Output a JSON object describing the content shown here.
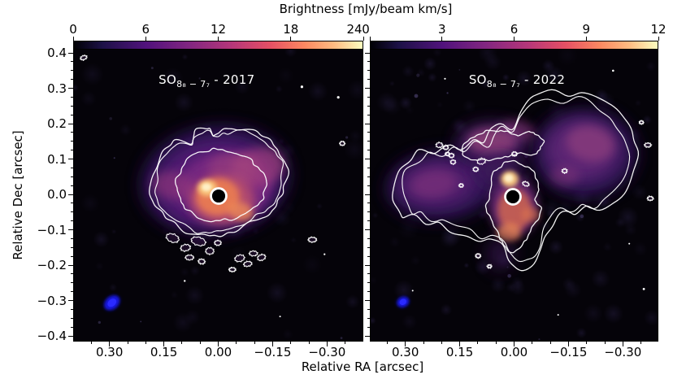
{
  "figure": {
    "colorbar_title": "Brightness [mJy/beam km/s]",
    "xlabel": "Relative RA [arcsec]",
    "ylabel": "Relative Dec [arcsec]",
    "y_ticks": [
      {
        "v": 0.4,
        "label": "0.4"
      },
      {
        "v": 0.3,
        "label": "0.3"
      },
      {
        "v": 0.2,
        "label": "0.2"
      },
      {
        "v": 0.1,
        "label": "0.1"
      },
      {
        "v": 0.0,
        "label": "0.0"
      },
      {
        "v": -0.1,
        "label": "−0.1"
      },
      {
        "v": -0.2,
        "label": "−0.2"
      },
      {
        "v": -0.3,
        "label": "−0.3"
      },
      {
        "v": -0.4,
        "label": "−0.4"
      }
    ],
    "panels": [
      {
        "title_mol": "SO",
        "title_transition": "8₈ − 7₇",
        "title_year": " - 2017",
        "colorbar_ticks": [
          {
            "v": 0,
            "label": "0"
          },
          {
            "v": 6,
            "label": "6"
          },
          {
            "v": 12,
            "label": "12"
          },
          {
            "v": 18,
            "label": "18"
          },
          {
            "v": 24,
            "label": "24"
          }
        ],
        "x_ticks": [
          {
            "v": 0.3,
            "label": "0.30"
          },
          {
            "v": 0.15,
            "label": "0.15"
          },
          {
            "v": 0.0,
            "label": "0.00"
          },
          {
            "v": -0.15,
            "label": "−0.15"
          },
          {
            "v": -0.3,
            "label": "−0.30"
          }
        ]
      },
      {
        "title_mol": "SO",
        "title_transition": "8₈ − 7₇",
        "title_year": " - 2022",
        "colorbar_ticks": [
          {
            "v": 0,
            "label": "0"
          },
          {
            "v": 3,
            "label": "3"
          },
          {
            "v": 6,
            "label": "6"
          },
          {
            "v": 9,
            "label": "9"
          },
          {
            "v": 12,
            "label": "12"
          }
        ],
        "x_ticks": [
          {
            "v": 0.3,
            "label": "0.30"
          },
          {
            "v": 0.15,
            "label": "0.15"
          },
          {
            "v": 0.0,
            "label": "0.00"
          },
          {
            "v": -0.15,
            "label": "−0.15"
          },
          {
            "v": -0.3,
            "label": "−0.30"
          }
        ]
      }
    ],
    "colors": {
      "colormap_stops": [
        "#000004",
        "#1d1147",
        "#51127c",
        "#822681",
        "#b73779",
        "#e55064",
        "#fc8961",
        "#febb81",
        "#fcfdbf"
      ],
      "contour": "#ffffff",
      "beam": "#1414dd",
      "background": "#ffffff",
      "panel_background": "#050309"
    }
  },
  "chart_data": {
    "type": "heatmap",
    "title": "Brightness [mJy/beam km/s]",
    "xlabel": "Relative RA [arcsec]",
    "ylabel": "Relative Dec [arcsec]",
    "xlim": [
      0.4,
      -0.4
    ],
    "ylim": [
      -0.4,
      0.4
    ],
    "x_tick_values": [
      0.3,
      0.15,
      0.0,
      -0.15,
      -0.3
    ],
    "y_tick_values": [
      0.4,
      0.3,
      0.2,
      0.1,
      0.0,
      -0.1,
      -0.2,
      -0.3,
      -0.4
    ],
    "colormap": "magma",
    "contour_color": "white",
    "grid": false,
    "panels": [
      {
        "label": "SO 8_8 - 7_7 - 2017",
        "epoch": 2017,
        "colorbar_range_mJy_per_beam_kms": [
          0,
          24
        ],
        "colorbar_ticks": [
          0,
          6,
          12,
          18,
          24
        ],
        "morphology": "Compact heart/kidney-shaped emission about 0.35 arcsec across centered slightly NW of origin; bright orange core with cream-colored peak immediately W-NW of the masked central source (black filled circle with white rim at 0,0); two closely spaced outer white contours plus one inner contour around the bright interior; clumpy chain of small contour islands trailing to the SE near Dec -0.1 to -0.2; faint white point sources in the NE quadrant",
        "beam": {
          "x_arcsec": 0.3,
          "y_arcsec": -0.3,
          "shape": "filled blue ellipse, tilted"
        },
        "star_marker": {
          "x_arcsec": 0.0,
          "y_arcsec": 0.0,
          "style": "filled black circle with white edge"
        }
      },
      {
        "label": "SO 8_8 - 7_7 - 2022",
        "epoch": 2022,
        "colorbar_range_mJy_per_beam_kms": [
          0,
          12
        ],
        "colorbar_ticks": [
          0,
          3,
          6,
          9,
          12
        ],
        "morphology": "Extended butterfly-shaped emission spanning roughly 0.6 arcsec E-W: faint purple eastern lobe (RA +0.1 to +0.3) dotted with tiny contour islands, brighter pink-purple western lobe (RA -0.05 to -0.3), a pinkish northern patch near Dec +0.15, and a compact bright orange core with cream peak just N of the masked star and an orange blob S of it; nested white contours outline the lobes, northern patch and core; stronger speckled purple background noise than 2017",
        "beam": {
          "x_arcsec": 0.3,
          "y_arcsec": -0.3,
          "shape": "filled blue ellipse, near-circular"
        },
        "star_marker": {
          "x_arcsec": 0.0,
          "y_arcsec": 0.0,
          "style": "filled black circle with white edge"
        }
      }
    ]
  }
}
